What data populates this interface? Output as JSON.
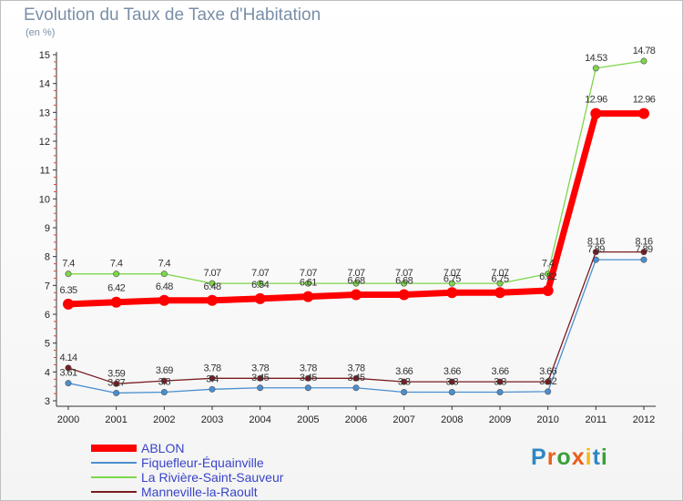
{
  "title": "Evolution du Taux de Taxe d'Habitation",
  "subtitle": "(en %)",
  "brand": {
    "text": "Proxiti",
    "letter_colors": [
      "#2f86c4",
      "#e8601c",
      "#3a9f3a",
      "#e8601c",
      "#f2b81a",
      "#2f86c4",
      "#3a9f3a"
    ]
  },
  "chart_data": {
    "type": "line",
    "title": "Evolution du Taux de Taxe d'Habitation",
    "ylabel": "(en %)",
    "xlabel": "",
    "x": [
      "2000",
      "2001",
      "2002",
      "2003",
      "2004",
      "2005",
      "2006",
      "2007",
      "2008",
      "2009",
      "2010",
      "2011",
      "2012"
    ],
    "ylim": [
      3,
      15
    ],
    "yticks": [
      "3",
      "4",
      "5",
      "6",
      "7",
      "8",
      "9",
      "10",
      "11",
      "12",
      "13",
      "14",
      "15"
    ],
    "grid": false,
    "legend_position": "bottom-left",
    "series": [
      {
        "name": "ABLON",
        "color": "#ff0000",
        "values": [
          6.35,
          6.42,
          6.48,
          6.48,
          6.54,
          6.61,
          6.68,
          6.68,
          6.75,
          6.75,
          6.82,
          12.96,
          12.96
        ],
        "labels": [
          "6.35",
          "6.42",
          "6.48",
          "6.48",
          "6.54",
          "6.61",
          "6.68",
          "6.68",
          "6.75",
          "6.75",
          "6.82",
          "12.96",
          "12.96"
        ]
      },
      {
        "name": "Fiquefleur-Équainville",
        "color": "#4a8fd0",
        "values": [
          3.61,
          3.27,
          3.3,
          3.4,
          3.45,
          3.45,
          3.45,
          3.3,
          3.3,
          3.3,
          3.32,
          7.89,
          7.89
        ],
        "labels": [
          "3.61",
          "3.27",
          "3.3",
          "3.4",
          "3.45",
          "3.45",
          "3.45",
          "3.3",
          "3.3",
          "3.3",
          "3.32",
          "7.89",
          "7.89"
        ]
      },
      {
        "name": "La Rivière-Saint-Sauveur",
        "color": "#7dd64a",
        "values": [
          7.4,
          7.4,
          7.4,
          7.07,
          7.07,
          7.07,
          7.07,
          7.07,
          7.07,
          7.07,
          7.4,
          14.53,
          14.78
        ],
        "labels": [
          "7.4",
          "7.4",
          "7.4",
          "7.07",
          "7.07",
          "7.07",
          "7.07",
          "7.07",
          "7.07",
          "7.07",
          "7.4",
          "14.53",
          "14.78"
        ]
      },
      {
        "name": "Manneville-la-Raoult",
        "color": "#7a1c22",
        "values": [
          4.14,
          3.59,
          3.69,
          3.78,
          3.78,
          3.78,
          3.78,
          3.66,
          3.66,
          3.66,
          3.66,
          8.16,
          8.16
        ],
        "labels": [
          "4.14",
          "3.59",
          "3.69",
          "3.78",
          "3.78",
          "3.78",
          "3.78",
          "3.66",
          "3.66",
          "3.66",
          "3.66",
          "8.16",
          "8.16"
        ]
      }
    ]
  }
}
